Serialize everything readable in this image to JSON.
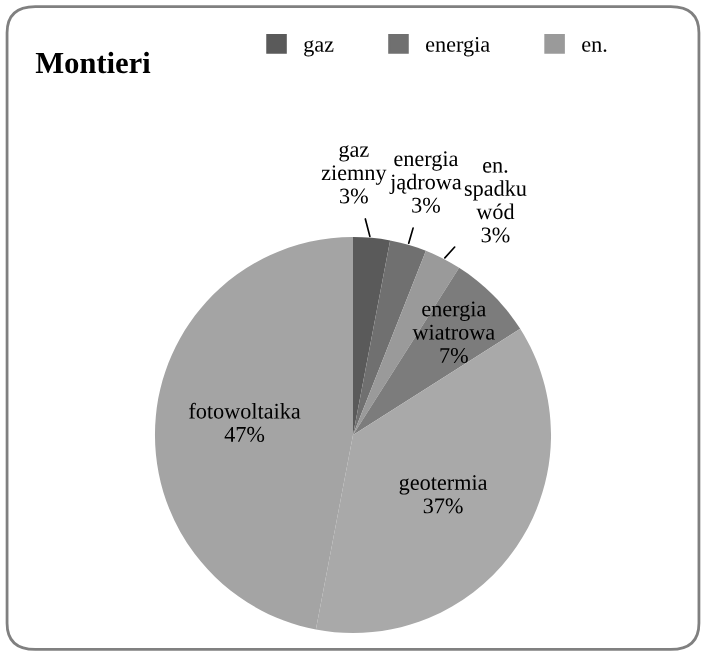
{
  "chart_data": {
    "type": "pie",
    "title": "Montieri",
    "categories": [
      "gaz ziemny",
      "energia jądrowa",
      "en. spadku wód",
      "energia wiatrowa",
      "geotermia",
      "fotowoltaika"
    ],
    "values": [
      3,
      3,
      3,
      7,
      37,
      47
    ],
    "value_labels": [
      "3%",
      "3%",
      "3%",
      "7%",
      "37%",
      "47%"
    ],
    "colors": [
      "#5a5a5a",
      "#707070",
      "#9a9a9a",
      "#7c7c7c",
      "#a9a9a9",
      "#a4a4a4"
    ],
    "annotations": [
      "gaz",
      "energia",
      "en."
    ]
  }
}
